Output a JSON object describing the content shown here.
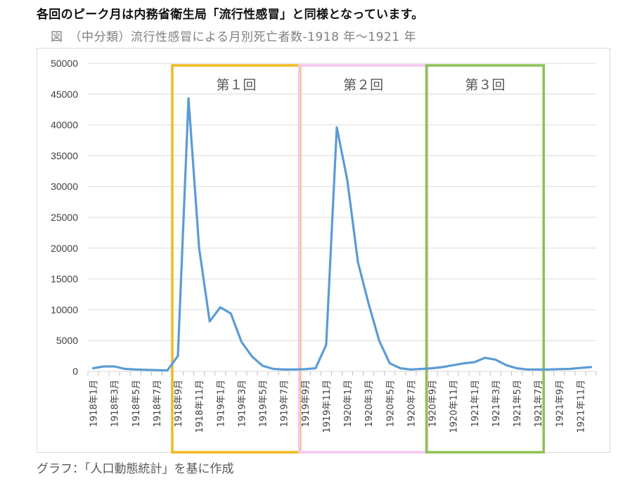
{
  "intro_text": "各回のピーク月は内務省衛生局「流行性感冒」と同様となっています。",
  "figure_title": "図　（中分類）流行性感冒による月別死亡者数-1918 年～1921 年",
  "source_note": "グラフ：「人口動態統計」を基に作成",
  "colors": {
    "line": "#5b9bd5",
    "period1": "#f2b820",
    "period2": "#f5c6f0",
    "period3": "#8cc152",
    "grid": "#d9d9d9"
  },
  "chart_data": {
    "type": "line",
    "title": "",
    "xlabel": "",
    "ylabel": "",
    "ylim": [
      0,
      50000
    ],
    "yticks": [
      0,
      5000,
      10000,
      15000,
      20000,
      25000,
      30000,
      35000,
      40000,
      45000,
      50000
    ],
    "grid": true,
    "x": [
      "1918年1月",
      "1918年2月",
      "1918年3月",
      "1918年4月",
      "1918年5月",
      "1918年6月",
      "1918年7月",
      "1918年8月",
      "1918年9月",
      "1918年10月",
      "1918年11月",
      "1918年12月",
      "1919年1月",
      "1919年2月",
      "1919年3月",
      "1919年4月",
      "1919年5月",
      "1919年6月",
      "1919年7月",
      "1919年8月",
      "1919年9月",
      "1919年10月",
      "1919年11月",
      "1919年12月",
      "1920年1月",
      "1920年2月",
      "1920年3月",
      "1920年4月",
      "1920年5月",
      "1920年6月",
      "1920年7月",
      "1920年8月",
      "1920年9月",
      "1920年10月",
      "1920年11月",
      "1920年12月",
      "1921年1月",
      "1921年2月",
      "1921年3月",
      "1921年4月",
      "1921年5月",
      "1921年6月",
      "1921年7月",
      "1921年8月",
      "1921年9月",
      "1921年10月",
      "1921年11月",
      "1921年12月"
    ],
    "x_tick_labels": [
      "1918年1月",
      "1918年3月",
      "1918年5月",
      "1918年7月",
      "1918年9月",
      "1918年11月",
      "1919年1月",
      "1919年3月",
      "1919年5月",
      "1919年7月",
      "1919年9月",
      "1919年11月",
      "1920年1月",
      "1920年3月",
      "1920年5月",
      "1920年7月",
      "1920年9月",
      "1920年11月",
      "1921年1月",
      "1921年3月",
      "1921年5月",
      "1921年7月",
      "1921年9月",
      "1921年11月"
    ],
    "series": [
      {
        "values": [
          500,
          800,
          800,
          400,
          300,
          250,
          200,
          150,
          2500,
          44300,
          20000,
          8100,
          10400,
          9400,
          4800,
          2400,
          900,
          400,
          300,
          300,
          350,
          500,
          4300,
          39600,
          31000,
          17700,
          11000,
          5000,
          1300,
          500,
          300,
          400,
          500,
          700,
          1000,
          1300,
          1500,
          2200,
          1900,
          1000,
          500,
          300,
          300,
          300,
          350,
          400,
          550,
          700
        ]
      }
    ],
    "periods": [
      {
        "label": "第１回",
        "start": "1918年9月",
        "end": "1919年8月"
      },
      {
        "label": "第２回",
        "start": "1919年9月",
        "end": "1920年8月"
      },
      {
        "label": "第３回",
        "start": "1920年9月",
        "end": "1921年7月"
      }
    ]
  }
}
